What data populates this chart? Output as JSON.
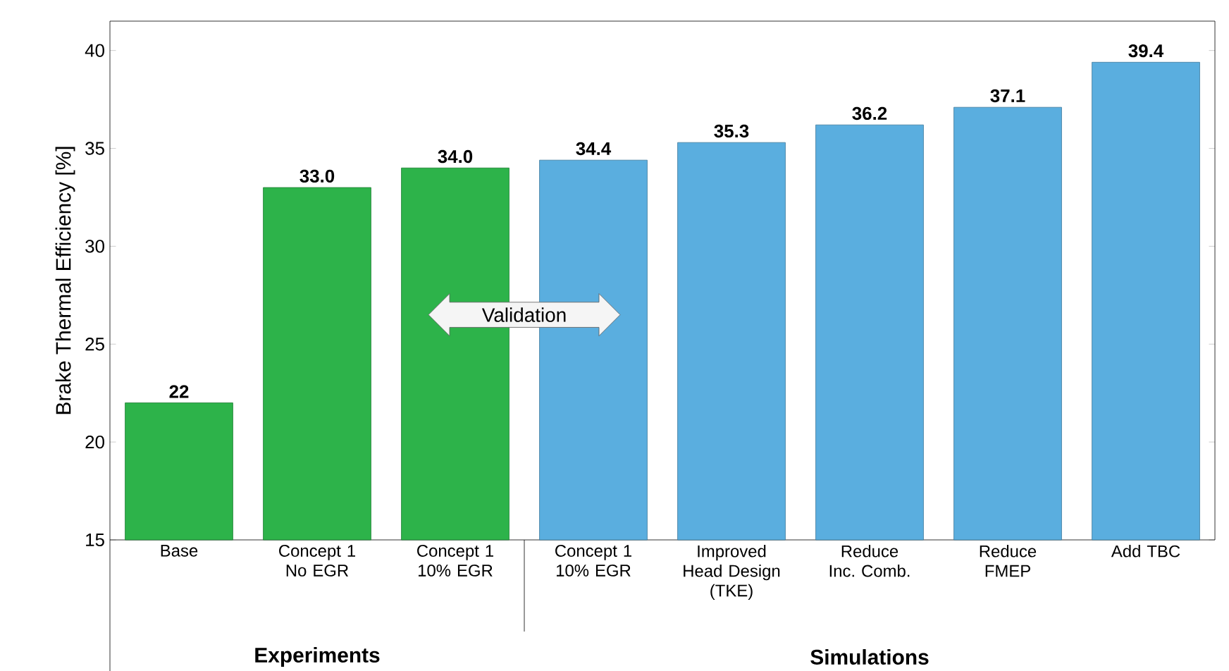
{
  "chart_data": {
    "type": "bar",
    "ylabel": "Brake Thermal Efficiency [%]",
    "categories": [
      "Base",
      "Concept 1 No EGR",
      "Concept 1 10% EGR",
      "Concept 1 10% EGR",
      "Improved Head Design (TKE)",
      "Reduce Inc. Comb.",
      "Reduce FMEP",
      "Add TBC"
    ],
    "values": [
      22,
      33.0,
      34.0,
      34.4,
      35.3,
      36.2,
      37.1,
      39.4
    ],
    "value_labels": [
      "22",
      "33.0",
      "34.0",
      "34.4",
      "35.3",
      "36.2",
      "37.1",
      "39.4"
    ],
    "colors": [
      "#2db34a",
      "#2db34a",
      "#2db34a",
      "#5aaedf",
      "#5aaedf",
      "#5aaedf",
      "#5aaedf",
      "#5aaedf"
    ],
    "ylim": [
      15,
      41.5
    ],
    "yticks": [
      15,
      20,
      25,
      30,
      35,
      40
    ],
    "grid": false,
    "annotations": [
      "Validation",
      "Experiments",
      "Simulations"
    ]
  }
}
